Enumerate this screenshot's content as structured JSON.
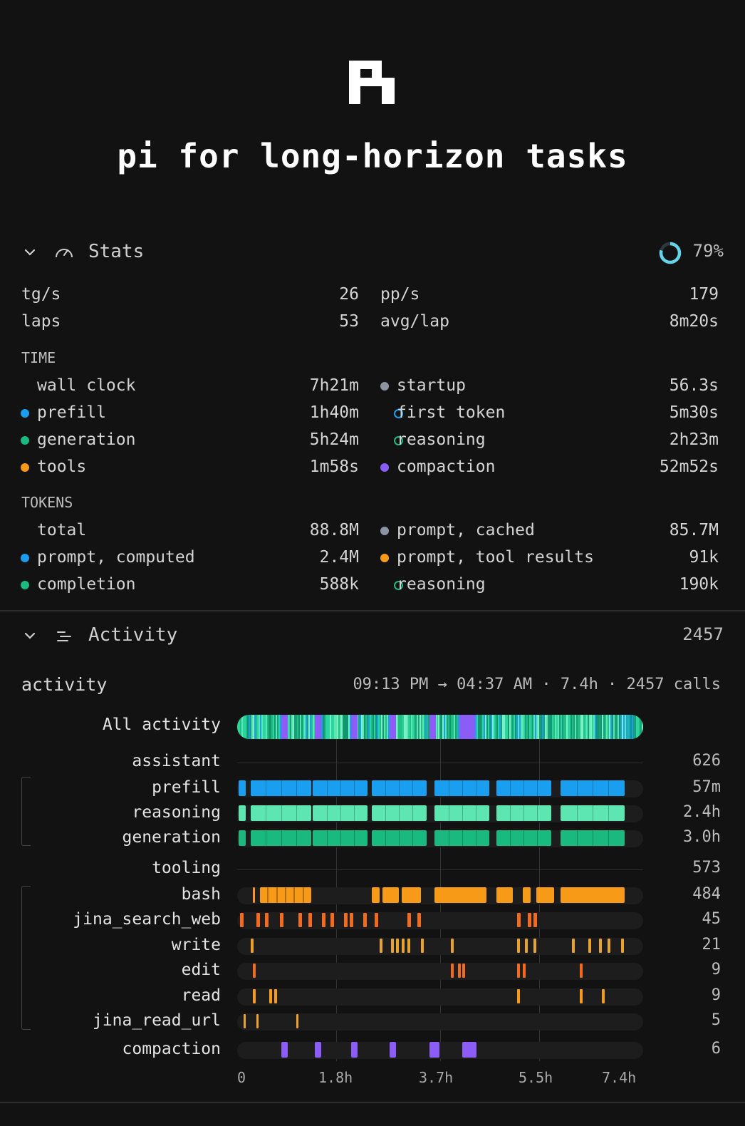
{
  "title": "pi for long-horizon tasks",
  "colors": {
    "blue": "#1a9ff0",
    "green": "#19b980",
    "mint": "#5de6b2",
    "orange": "#f79a18",
    "deep_orange": "#f26a1b",
    "gold": "#e8a22d",
    "purple": "#8b5cf6",
    "gray": "#8c93a3",
    "ring": "#64d4ea"
  },
  "stats": {
    "header": "Stats",
    "progress_value": 0.79,
    "progress_label": "79%",
    "top": [
      {
        "label": "tg/s",
        "value": "26",
        "label2": "pp/s",
        "value2": "179"
      },
      {
        "label": "laps",
        "value": "53",
        "label2": "avg/lap",
        "value2": "8m20s"
      }
    ],
    "time_heading": "TIME",
    "time": [
      {
        "label": "wall clock",
        "value": "7h21m",
        "dot": "",
        "label2": "startup",
        "value2": "56.3s",
        "dot2": "gray"
      },
      {
        "label": "prefill",
        "value": "1h40m",
        "dot": "blue",
        "label2": "first token",
        "value2": "5m30s",
        "dot2": "o-blue"
      },
      {
        "label": "generation",
        "value": "5h24m",
        "dot": "green",
        "label2": "reasoning",
        "value2": "2h23m",
        "dot2": "o-green"
      },
      {
        "label": "tools",
        "value": "1m58s",
        "dot": "orange",
        "label2": "compaction",
        "value2": "52m52s",
        "dot2": "purple"
      }
    ],
    "tokens_heading": "TOKENS",
    "tokens": [
      {
        "label": "total",
        "value": "88.8M",
        "dot": "",
        "label2": "prompt, cached",
        "value2": "85.7M",
        "dot2": "gray"
      },
      {
        "label": "prompt, computed",
        "value": "2.4M",
        "dot": "blue",
        "label2": "prompt, tool results",
        "value2": "91k",
        "dot2": "orange"
      },
      {
        "label": "completion",
        "value": "588k",
        "dot": "green",
        "label2": "reasoning",
        "value2": "190k",
        "dot2": "o-green"
      }
    ]
  },
  "activity": {
    "header": "Activity",
    "header_count": "2457",
    "subtitle": "activity",
    "range": "09:13 PM → 04:37 AM · 7.4h · 2457 calls",
    "all_label": "All activity",
    "groups": [
      {
        "label": "assistant",
        "count": "626"
      },
      {
        "label": "tooling",
        "count": "573"
      }
    ],
    "rows": [
      {
        "label": "prefill",
        "count": "57m"
      },
      {
        "label": "reasoning",
        "count": "2.4h"
      },
      {
        "label": "generation",
        "count": "3.0h"
      },
      {
        "label": "bash",
        "count": "484"
      },
      {
        "label": "jina_search_web",
        "count": "45"
      },
      {
        "label": "write",
        "count": "21"
      },
      {
        "label": "edit",
        "count": "9"
      },
      {
        "label": "read",
        "count": "9"
      },
      {
        "label": "jina_read_url",
        "count": "5"
      },
      {
        "label": "compaction",
        "count": "6"
      }
    ],
    "axis": [
      "0",
      "1.8h",
      "3.7h",
      "5.5h",
      "7.4h"
    ],
    "compaction_hours": [
      0.8,
      1.42,
      2.08,
      2.78,
      3.5,
      4.1
    ]
  }
}
